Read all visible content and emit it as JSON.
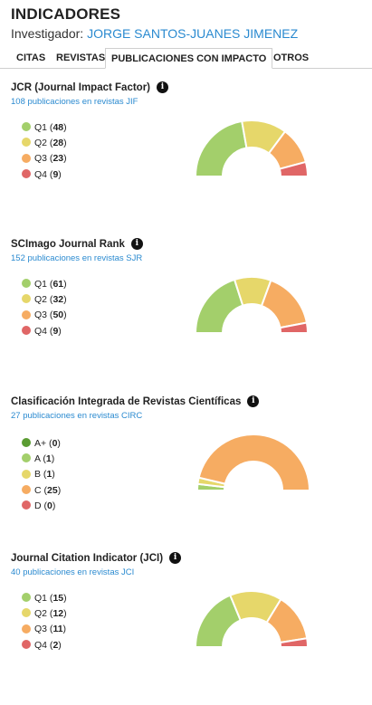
{
  "header": {
    "title": "INDICADORES",
    "investigador_label": "Investigador:",
    "investigador_name": "JORGE SANTOS-JUANES JIMENEZ"
  },
  "tabs": [
    {
      "label": "CITAS",
      "active": false
    },
    {
      "label": "REVISTAS",
      "active": false
    },
    {
      "label": "PUBLICACIONES CON IMPACTO",
      "active": true
    },
    {
      "label": "OTROS",
      "active": false
    }
  ],
  "colors": {
    "A+": "#5a9c32",
    "A": "#a3cf6b",
    "Q1": "#a3cf6b",
    "Q2": "#e6d76a",
    "B": "#e6d76a",
    "Q3": "#f6ac62",
    "C": "#f6ac62",
    "Q4": "#e06666",
    "D": "#e06666"
  },
  "sections": [
    {
      "title": "JCR (Journal Impact Factor)",
      "subtitle": "108 publicaciones en revistas JIF",
      "items": [
        {
          "label": "Q1",
          "value": 48
        },
        {
          "label": "Q2",
          "value": 28
        },
        {
          "label": "Q3",
          "value": 23
        },
        {
          "label": "Q4",
          "value": 9
        }
      ]
    },
    {
      "title": "SCImago Journal Rank",
      "subtitle": "152 publicaciones en revistas SJR",
      "items": [
        {
          "label": "Q1",
          "value": 61
        },
        {
          "label": "Q2",
          "value": 32
        },
        {
          "label": "Q3",
          "value": 50
        },
        {
          "label": "Q4",
          "value": 9
        }
      ]
    },
    {
      "title": "Clasificación Integrada de Revistas Científicas",
      "subtitle": "27 publicaciones en revistas CIRC",
      "items": [
        {
          "label": "A+",
          "value": 0
        },
        {
          "label": "A",
          "value": 1
        },
        {
          "label": "B",
          "value": 1
        },
        {
          "label": "C",
          "value": 25
        },
        {
          "label": "D",
          "value": 0
        }
      ]
    },
    {
      "title": "Journal Citation Indicator (JCI)",
      "subtitle": "40 publicaciones en revistas JCI",
      "items": [
        {
          "label": "Q1",
          "value": 15
        },
        {
          "label": "Q2",
          "value": 12
        },
        {
          "label": "Q3",
          "value": 11
        },
        {
          "label": "Q4",
          "value": 2
        }
      ]
    }
  ]
}
